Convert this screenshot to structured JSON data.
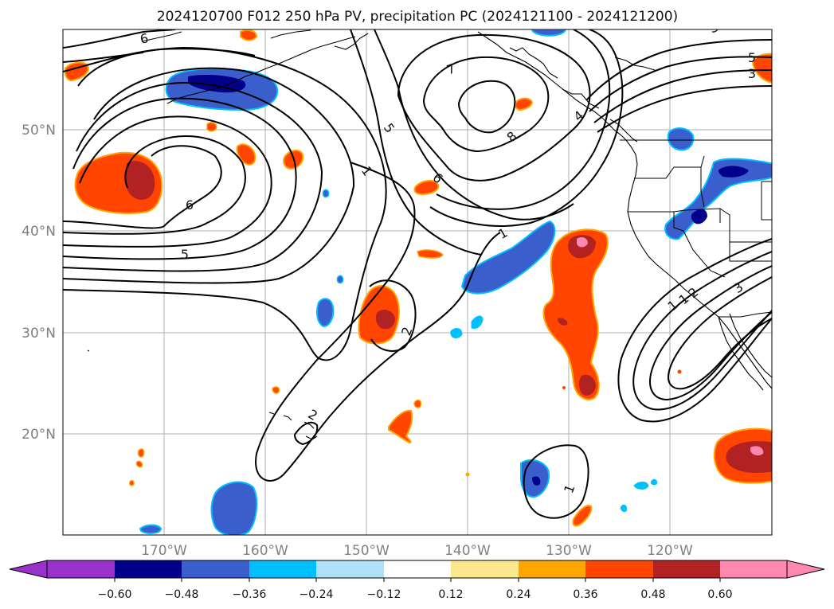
{
  "title": "2024120700 F012 250 hPa PV, precipitation PC (2024121100 - 2024121200)",
  "latitude_labels": [
    "50°N",
    "40°N",
    "30°N",
    "20°N"
  ],
  "longitude_labels": [
    "170°W",
    "160°W",
    "150°W",
    "140°W",
    "130°W",
    "120°W"
  ],
  "contour_labels": [
    "6",
    "6",
    "5",
    "1",
    "1",
    "7",
    "5",
    "6",
    "8",
    "4",
    "5",
    "3",
    "3",
    "2",
    "2",
    "1",
    "1",
    "1",
    "2",
    "3"
  ],
  "colorbar": {
    "ticks": [
      "−0.60",
      "−0.48",
      "−0.36",
      "−0.24",
      "−0.12",
      "0.12",
      "0.24",
      "0.36",
      "0.48",
      "0.60"
    ],
    "colors": [
      "#9932cc",
      "#00008b",
      "#3a5fcd",
      "#00bfff",
      "#b0e0f8",
      "#ffffff",
      "#fbe88c",
      "#ffa500",
      "#ff4500",
      "#b22222",
      "#ff88b0"
    ]
  }
}
